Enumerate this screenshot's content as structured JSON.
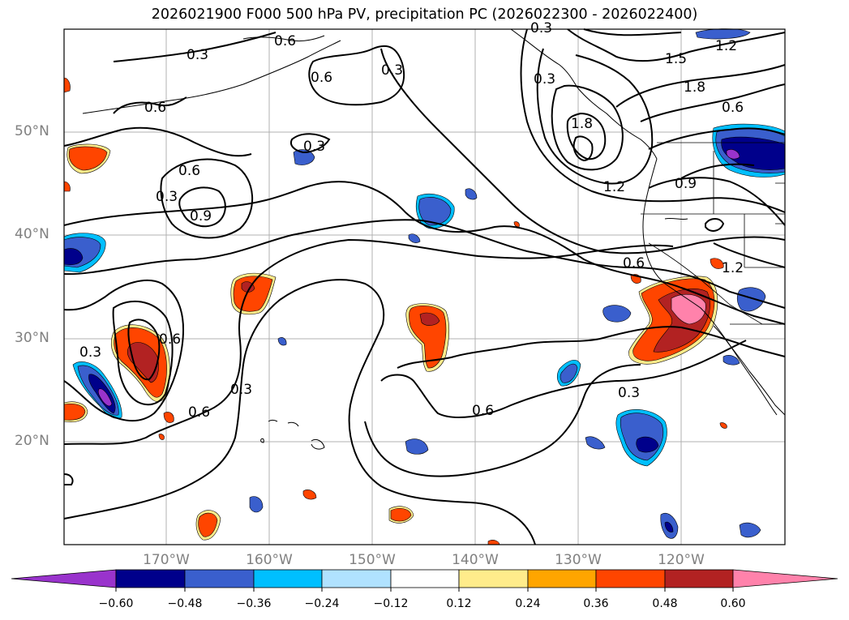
{
  "title": "2026021900 F000 500 hPa PV, precipitation PC (2026022300 - 2026022400)",
  "latitude_labels": [
    "50°N",
    "40°N",
    "30°N",
    "20°N"
  ],
  "longitude_labels": [
    "170°W",
    "160°W",
    "150°W",
    "140°W",
    "130°W",
    "120°W"
  ],
  "contour_labels": [
    "0.3",
    "0.6",
    "0.6",
    "0.3",
    "0.3",
    "0.6",
    "0.3",
    "0.6",
    "0.9",
    "0.3",
    "0.3",
    "0.6",
    "0.3",
    "0.6",
    "0.3",
    "0.6",
    "0.3",
    "1.5",
    "1.2",
    "1.8",
    "0.6",
    "1.8",
    "1.2",
    "0.9",
    "0.6",
    "1.2"
  ],
  "colorbar": {
    "ticks": [
      "−0.60",
      "−0.48",
      "−0.36",
      "−0.24",
      "−0.12",
      "0.12",
      "0.24",
      "0.36",
      "0.48",
      "0.60"
    ],
    "colors": [
      "#9933cc",
      "#00008b",
      "#3a5fcd",
      "#00bfff",
      "#b0e2ff",
      "#ffffff",
      "#ffec8b",
      "#ffa500",
      "#ff4500",
      "#b22222",
      "#ff82ab"
    ]
  },
  "precip_colors": {
    "neg_light": "#b0e2ff",
    "neg_cyan": "#00bfff",
    "neg_blue": "#3a5fcd",
    "neg_navy": "#00008b",
    "neg_purple": "#9933cc",
    "pos_yellow": "#ffec8b",
    "pos_orange": "#ffa500",
    "pos_red": "#ff4500",
    "pos_darkred": "#b22222",
    "pos_pink": "#ff82ab"
  }
}
